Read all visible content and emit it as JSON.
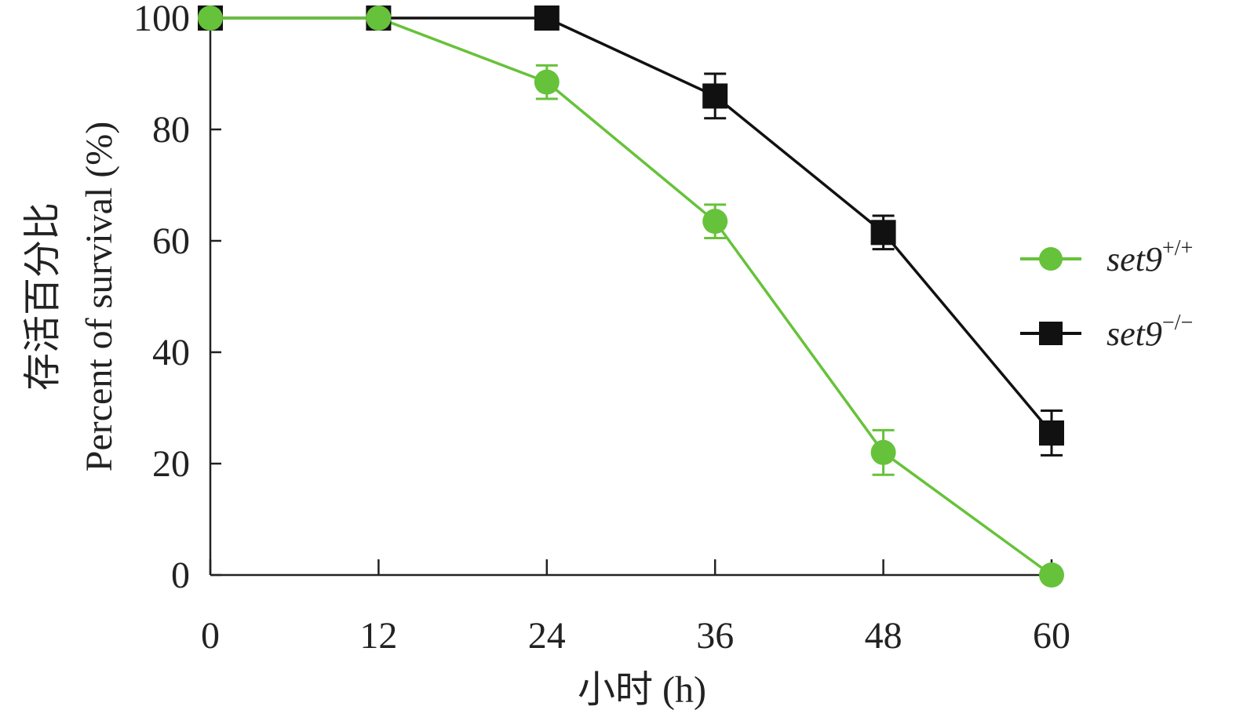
{
  "chart_data": {
    "type": "line",
    "xlabel": "小时 (h)",
    "ylabel_cn": "存活百分比",
    "ylabel_en": "Percent of survival (%)",
    "x": [
      0,
      12,
      24,
      36,
      48,
      60
    ],
    "xticks": [
      "0",
      "12",
      "24",
      "36",
      "48",
      "60"
    ],
    "yticks": [
      "0",
      "20",
      "40",
      "60",
      "80",
      "100"
    ],
    "xlim": [
      0,
      60
    ],
    "ylim": [
      0,
      100
    ],
    "grid": false,
    "legend_position": "right",
    "series": [
      {
        "name": "set9",
        "superscript": "+/+",
        "marker": "circle",
        "color": "#66c23a",
        "values": [
          100,
          100,
          88.5,
          63.5,
          22,
          0
        ],
        "errors": [
          0,
          0,
          3,
          3,
          4,
          0
        ]
      },
      {
        "name": "set9",
        "superscript": "−/−",
        "marker": "square",
        "color": "#111111",
        "values": [
          100,
          100,
          100,
          86,
          61.5,
          25.5
        ],
        "errors": [
          0,
          0,
          0,
          4,
          3,
          4
        ]
      }
    ]
  }
}
